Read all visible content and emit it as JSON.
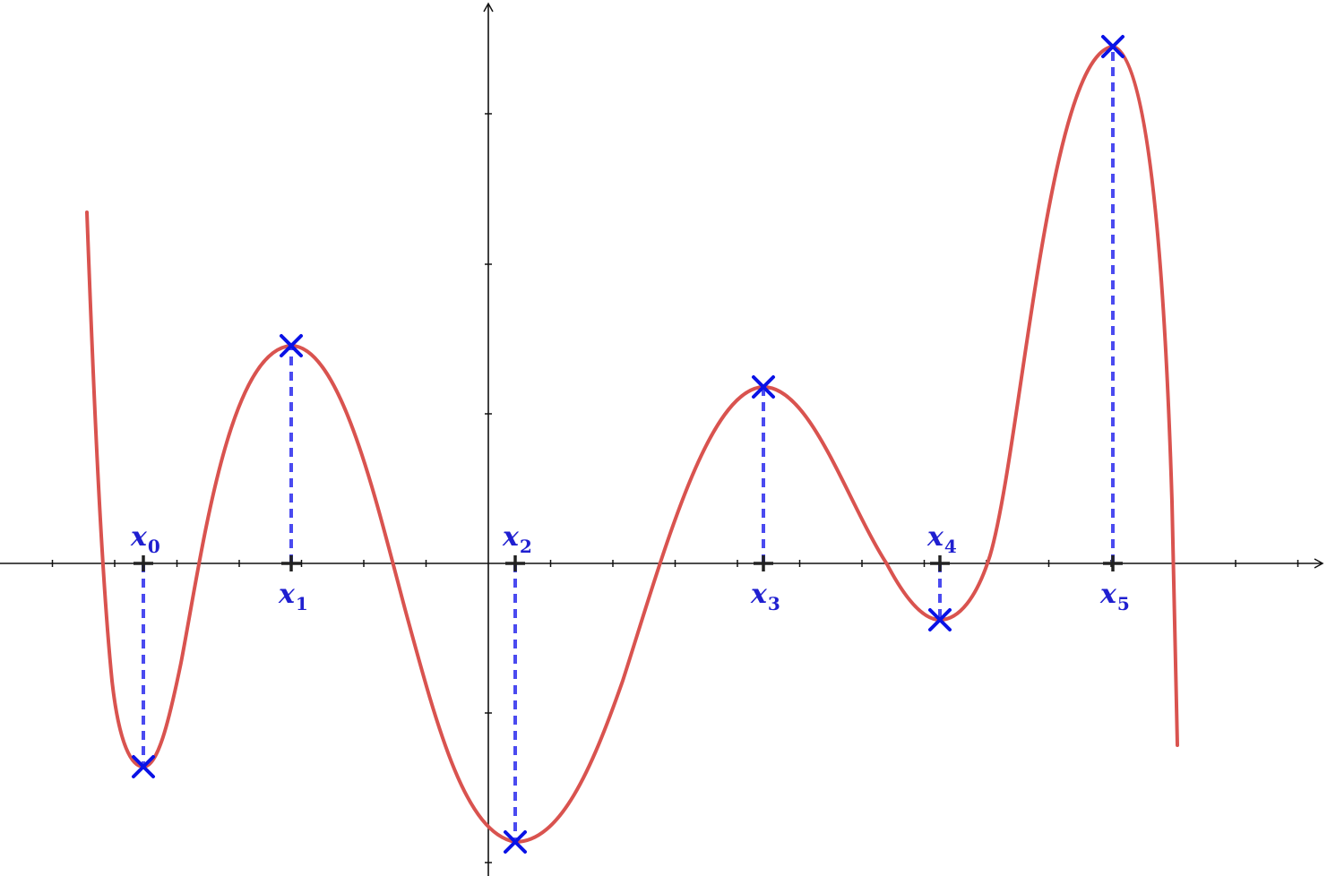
{
  "colors": {
    "axis": "#111111",
    "curve": "#d9534f",
    "marker": "#0a12e6",
    "dashed": "#4a4af0",
    "label": "#1f1fd0"
  },
  "points": [
    {
      "var": "x",
      "sub": "0",
      "kind": "min",
      "label_side": "above"
    },
    {
      "var": "x",
      "sub": "1",
      "kind": "max",
      "label_side": "below"
    },
    {
      "var": "x",
      "sub": "2",
      "kind": "min",
      "label_side": "above"
    },
    {
      "var": "x",
      "sub": "3",
      "kind": "max",
      "label_side": "below"
    },
    {
      "var": "x",
      "sub": "4",
      "kind": "min",
      "label_side": "above"
    },
    {
      "var": "x",
      "sub": "5",
      "kind": "max",
      "label_side": "below"
    }
  ]
}
